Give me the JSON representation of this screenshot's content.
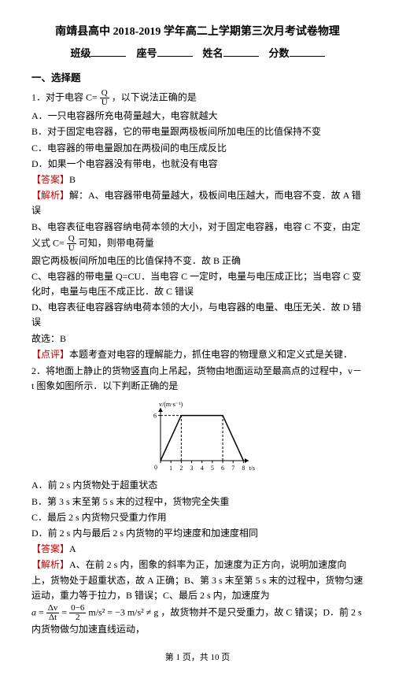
{
  "title": "南靖县高中 2018-2019 学年高二上学期第三次月考试卷物理",
  "header": {
    "l1": "班级",
    "l2": "座号",
    "l3": "姓名",
    "l4": "分数"
  },
  "sec1": "一、选择题",
  "q1": {
    "stem_a": "1．对于电容 C=",
    "frac_n": "Q",
    "frac_d": "U",
    "stem_b": "，以下说法正确的是",
    "A": "A．一只电容器所充电荷量越大，电容就越大",
    "B": "B．对于固定电容器，它的带电量跟两极板间所加电压的比值保持不变",
    "C": "C．电容器的带电量跟加在两极间的电压成反比",
    "D": "D．如果一个电容器没有带电，也就没有电容",
    "ans_l": "【答案】",
    "ans": "B",
    "exp_l": "【解析】",
    "exp1": "解：A、电容器带电荷量越大，极板间电压越大，而电容不变．故 A 错误",
    "exp2_a": "B、电容表征电容器容纳电荷本领的大小，对于固定电容器，电容 C 不变，由定义式 C=",
    "exp2_b": "可知，则带电荷量",
    "exp3": "跟它两极板间所加电压的比值保持不变．故 B 正确",
    "exp4": "C、电容器的带电量 Q=CU．当电容 C 一定时，电量与电压成正比；当电容 C 变化时，电量与电压不成正比．故 C 错误",
    "exp5": "D、电容表征电容器容纳电荷本领的大小，与电容器的电量、电压无关．故 D 错误",
    "exp6": "故选：B",
    "pt_l": "【点评】",
    "pt": "本题考查对电容的理解能力，抓住电容的物理意义和定义式是关键．"
  },
  "q2": {
    "stem": "2．将地面上静止的货物竖直向上吊起，货物由地面运动至最高点的过程中，v－t 图象如图所示．以下判断正确的是",
    "A": "A．前 2 s 内货物处于超重状态",
    "B": "B．第 3 s 末至第 5 s 末的过程中，货物完全失重",
    "C": "C．最后 2 s 内货物只受重力作用",
    "D": "D．前 2 s 内与最后 2 s 内货物的平均速度和加速度相同",
    "ans_l": "【答案】",
    "ans": "A",
    "exp_l": "【解析】",
    "exp1": "A、在前 2 s 内，图象的斜率为正，加速度为正方向，说明加速度向上，货物处于超重状态，故 A 正确；B、第 3 s 末至第 5 s 末的过程中，货物匀速运动，重力等于拉力，B 错误；C、最后 2 s 内，加速度为",
    "eq": "a = Δv/Δt = (0−6)/2 m/s² = −3 m/s² ≠ g",
    "exp2": "，故货物并不是只受重力，故 C 错误；D．前 2 s 内货物做匀加速直线运动，"
  },
  "chart": {
    "x_ticks": [
      "0",
      "1",
      "2",
      "3",
      "4",
      "5",
      "6",
      "7",
      "8"
    ],
    "y_label": "v/(m·s⁻¹)",
    "y_max_tick": "6",
    "x_label": "t/s",
    "points": [
      [
        0,
        0
      ],
      [
        2,
        6
      ],
      [
        6,
        6
      ],
      [
        8,
        0
      ]
    ],
    "line_color": "#000000",
    "dash_color": "#000000",
    "axis_color": "#000000",
    "bg": "#ffffff",
    "width": 150,
    "height": 95,
    "xlim": [
      0,
      8.5
    ],
    "ylim": [
      0,
      7
    ]
  },
  "footer": "第 1 页，共 10 页"
}
